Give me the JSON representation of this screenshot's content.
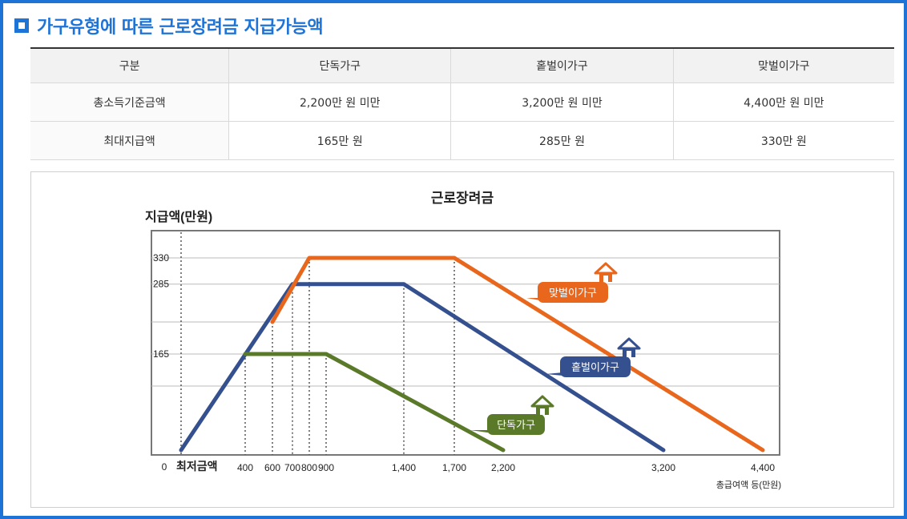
{
  "heading": {
    "title": "가구유형에 따른 근로장려금 지급가능액"
  },
  "table": {
    "headers": [
      "구분",
      "단독가구",
      "홑벌이가구",
      "맞벌이가구"
    ],
    "rows": [
      [
        "총소득기준금액",
        "2,200만 원 미만",
        "3,200만 원 미만",
        "4,400만 원 미만"
      ],
      [
        "최대지급액",
        "165만 원",
        "285만 원",
        "330만 원"
      ]
    ]
  },
  "chart_data": {
    "type": "line",
    "title": "근로장려금",
    "ylabel": "지급액(만원)",
    "xlabel": "총급여액 등(만원)",
    "x_zero_label": "0",
    "x_min_wage_label": "최저금액",
    "x_ticks": [
      400,
      600,
      700,
      800,
      900,
      1400,
      1700,
      2200,
      3200,
      4400
    ],
    "x_tick_labels": [
      "400",
      "600",
      "700",
      "800",
      "900",
      "1,400",
      "1,700",
      "2,200",
      "3,200",
      "4,400"
    ],
    "y_ticks": [
      165,
      285,
      330
    ],
    "xlim": [
      0,
      4400
    ],
    "ylim": [
      0,
      330
    ],
    "grid": true,
    "series": [
      {
        "name": "맞벌이가구",
        "color": "#e8671d",
        "x": [
          600,
          800,
          1700,
          4400
        ],
        "y": [
          220,
          330,
          330,
          0
        ]
      },
      {
        "name": "홑벌이가구",
        "color": "#34508e",
        "x": [
          0,
          700,
          1400,
          3200
        ],
        "y": [
          0,
          285,
          285,
          0
        ]
      },
      {
        "name": "단독가구",
        "color": "#5a7a2a",
        "x": [
          400,
          900,
          2200
        ],
        "y": [
          165,
          165,
          0
        ]
      }
    ]
  }
}
